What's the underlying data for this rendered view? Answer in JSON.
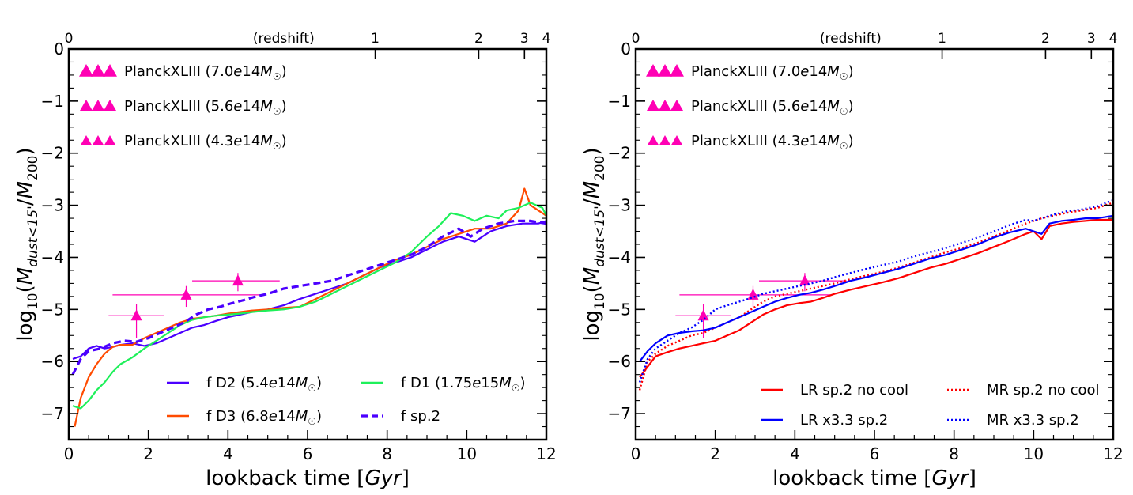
{
  "chart_data": [
    {
      "type": "line",
      "xlabel": "lookback time  [Gyr]",
      "ylabel": "log10(M dust <15' / M 200)",
      "top_axis_label": "(redshift)",
      "xlim": [
        0,
        12
      ],
      "ylim": [
        -7.5,
        0
      ],
      "x_ticks": [
        "0",
        "2",
        "4",
        "6",
        "8",
        "10",
        "12"
      ],
      "y_ticks": [
        "0",
        "−1",
        "−2",
        "−3",
        "−4",
        "−5",
        "−6",
        "−7"
      ],
      "top_ticks": [
        {
          "label": "0",
          "x": 0
        },
        {
          "label": "1",
          "x": 7.7
        },
        {
          "label": "2",
          "x": 10.3
        },
        {
          "label": "3",
          "x": 11.45
        },
        {
          "label": "4",
          "x": 12.0
        }
      ],
      "observations": [
        {
          "name": "PlanckXLIII (7.0e14M☉)",
          "color": "#ff00b4",
          "x": 4.25,
          "y": -4.45,
          "xerr": [
            3.1,
            5.3
          ],
          "yerr_up": -4.3,
          "yerr_low": -4.65
        },
        {
          "name": "PlanckXLIII (5.6e14M☉)",
          "color": "#ff00b4",
          "x": 2.95,
          "y": -4.72,
          "xerr": [
            1.1,
            4.9
          ],
          "yerr_up": -4.55,
          "yerr_low": -4.95
        },
        {
          "name": "PlanckXLIII (4.3e14M☉)",
          "color": "#ff00b4",
          "x": 1.7,
          "y": -5.12,
          "xerr": [
            1.0,
            2.4
          ],
          "yerr_up": -4.9,
          "yerr_low": -5.55
        }
      ],
      "series": [
        {
          "name": "f D2 (5.4e14M☉)",
          "color": "#4b00ff",
          "dash": "solid",
          "x": [
            0.1,
            0.3,
            0.5,
            0.7,
            0.9,
            1.1,
            1.3,
            1.6,
            1.9,
            2.2,
            2.5,
            2.8,
            3.1,
            3.4,
            3.7,
            4.0,
            4.3,
            4.6,
            5.0,
            5.4,
            5.8,
            6.2,
            6.6,
            7.0,
            7.4,
            7.8,
            8.2,
            8.6,
            9.0,
            9.4,
            9.8,
            10.2,
            10.6,
            11.0,
            11.4,
            11.8,
            12.0
          ],
          "y": [
            -5.95,
            -5.9,
            -5.75,
            -5.7,
            -5.75,
            -5.72,
            -5.68,
            -5.65,
            -5.7,
            -5.65,
            -5.55,
            -5.45,
            -5.35,
            -5.3,
            -5.22,
            -5.15,
            -5.1,
            -5.05,
            -5.0,
            -4.92,
            -4.8,
            -4.7,
            -4.6,
            -4.5,
            -4.35,
            -4.2,
            -4.1,
            -4.0,
            -3.85,
            -3.7,
            -3.6,
            -3.7,
            -3.5,
            -3.4,
            -3.35,
            -3.35,
            -3.3
          ]
        },
        {
          "name": "f D3 (6.8e14M☉)",
          "color": "#ff4b00",
          "dash": "solid",
          "x": [
            0.15,
            0.3,
            0.5,
            0.7,
            0.9,
            1.1,
            1.3,
            1.6,
            1.9,
            2.2,
            2.5,
            2.8,
            3.1,
            3.4,
            3.7,
            4.0,
            4.3,
            4.6,
            5.0,
            5.4,
            5.8,
            6.2,
            6.6,
            7.0,
            7.4,
            7.8,
            8.2,
            8.6,
            9.0,
            9.4,
            9.8,
            10.2,
            10.6,
            11.0,
            11.3,
            11.45,
            11.6,
            12.0
          ],
          "y": [
            -7.25,
            -6.7,
            -6.3,
            -6.05,
            -5.85,
            -5.72,
            -5.68,
            -5.68,
            -5.55,
            -5.45,
            -5.35,
            -5.25,
            -5.18,
            -5.15,
            -5.12,
            -5.08,
            -5.05,
            -5.02,
            -5.0,
            -4.97,
            -4.95,
            -4.8,
            -4.65,
            -4.5,
            -4.35,
            -4.2,
            -4.05,
            -3.95,
            -3.8,
            -3.65,
            -3.55,
            -3.45,
            -3.45,
            -3.35,
            -3.1,
            -2.68,
            -3.0,
            -3.2
          ]
        },
        {
          "name": "f D1 (1.75e15M☉)",
          "color": "#1ef05a",
          "dash": "solid",
          "x": [
            0.1,
            0.3,
            0.5,
            0.7,
            0.9,
            1.1,
            1.3,
            1.6,
            1.9,
            2.2,
            2.5,
            2.8,
            3.1,
            3.4,
            3.7,
            4.0,
            4.3,
            4.6,
            5.0,
            5.4,
            5.8,
            6.2,
            6.6,
            7.0,
            7.4,
            7.8,
            8.2,
            8.6,
            9.0,
            9.3,
            9.6,
            9.9,
            10.2,
            10.5,
            10.8,
            11.0,
            11.3,
            11.6,
            11.9,
            12.0
          ],
          "y": [
            -6.85,
            -6.9,
            -6.75,
            -6.55,
            -6.4,
            -6.2,
            -6.05,
            -5.92,
            -5.75,
            -5.6,
            -5.45,
            -5.3,
            -5.2,
            -5.15,
            -5.12,
            -5.1,
            -5.08,
            -5.05,
            -5.02,
            -5.0,
            -4.95,
            -4.85,
            -4.7,
            -4.55,
            -4.4,
            -4.25,
            -4.1,
            -3.9,
            -3.6,
            -3.4,
            -3.15,
            -3.2,
            -3.3,
            -3.2,
            -3.25,
            -3.1,
            -3.05,
            -2.95,
            -3.05,
            -3.2
          ]
        },
        {
          "name": "f sp.2",
          "color": "#4b00ff",
          "dash": "dashed",
          "x": [
            0.1,
            0.3,
            0.5,
            0.8,
            1.1,
            1.4,
            1.7,
            2.0,
            2.3,
            2.6,
            2.9,
            3.2,
            3.5,
            3.8,
            4.1,
            4.4,
            4.7,
            5.0,
            5.4,
            5.8,
            6.2,
            6.6,
            7.0,
            7.4,
            7.8,
            8.2,
            8.6,
            9.0,
            9.4,
            9.8,
            10.1,
            10.4,
            10.8,
            11.2,
            11.6,
            12.0
          ],
          "y": [
            -6.25,
            -5.95,
            -5.8,
            -5.75,
            -5.65,
            -5.6,
            -5.62,
            -5.55,
            -5.45,
            -5.35,
            -5.25,
            -5.1,
            -5.0,
            -4.95,
            -4.88,
            -4.82,
            -4.75,
            -4.7,
            -4.6,
            -4.55,
            -4.5,
            -4.45,
            -4.35,
            -4.25,
            -4.15,
            -4.05,
            -3.95,
            -3.8,
            -3.6,
            -3.45,
            -3.6,
            -3.45,
            -3.35,
            -3.3,
            -3.3,
            -3.35
          ]
        }
      ],
      "legend": [
        {
          "name": "f D2 (5.4e14M☉)",
          "color": "#4b00ff",
          "style": "solid"
        },
        {
          "name": "f D1 (1.75e15M☉)",
          "color": "#1ef05a",
          "style": "solid"
        },
        {
          "name": "f D3 (6.8e14M☉)",
          "color": "#ff4b00",
          "style": "solid"
        },
        {
          "name": "f sp.2",
          "color": "#4b00ff",
          "style": "dashed"
        }
      ]
    },
    {
      "type": "line",
      "xlabel": "lookback time  [Gyr]",
      "ylabel": "log10(M dust <15' / M 200)",
      "top_axis_label": "(redshift)",
      "xlim": [
        0,
        12
      ],
      "ylim": [
        -7.5,
        0
      ],
      "x_ticks": [
        "0",
        "2",
        "4",
        "6",
        "8",
        "10",
        "12"
      ],
      "y_ticks": [
        "0",
        "−1",
        "−2",
        "−3",
        "−4",
        "−5",
        "−6",
        "−7"
      ],
      "top_ticks": [
        {
          "label": "0",
          "x": 0
        },
        {
          "label": "1",
          "x": 7.7
        },
        {
          "label": "2",
          "x": 10.3
        },
        {
          "label": "3",
          "x": 11.45
        },
        {
          "label": "4",
          "x": 12.0
        }
      ],
      "observations": [
        {
          "name": "PlanckXLIII (7.0e14M☉)",
          "color": "#ff00b4",
          "x": 4.25,
          "y": -4.45,
          "xerr": [
            3.1,
            5.3
          ],
          "yerr_up": -4.3,
          "yerr_low": -4.65
        },
        {
          "name": "PlanckXLIII (5.6e14M☉)",
          "color": "#ff00b4",
          "x": 2.95,
          "y": -4.72,
          "xerr": [
            1.1,
            4.9
          ],
          "yerr_up": -4.55,
          "yerr_low": -4.95
        },
        {
          "name": "PlanckXLIII (4.3e14M☉)",
          "color": "#ff00b4",
          "x": 1.7,
          "y": -5.12,
          "xerr": [
            1.0,
            2.4
          ],
          "yerr_up": -4.9,
          "yerr_low": -5.55
        }
      ],
      "series": [
        {
          "name": "LR sp.2 no cool",
          "color": "#ff0000",
          "dash": "solid",
          "x": [
            0.1,
            0.3,
            0.5,
            0.8,
            1.1,
            1.4,
            1.7,
            2.0,
            2.3,
            2.6,
            2.9,
            3.2,
            3.5,
            3.8,
            4.1,
            4.4,
            4.7,
            5.0,
            5.4,
            5.8,
            6.2,
            6.6,
            7.0,
            7.4,
            7.8,
            8.2,
            8.6,
            9.0,
            9.4,
            9.8,
            10.0,
            10.2,
            10.4,
            10.7,
            11.0,
            11.3,
            11.6,
            12.0
          ],
          "y": [
            -6.3,
            -6.1,
            -5.9,
            -5.82,
            -5.75,
            -5.7,
            -5.65,
            -5.6,
            -5.5,
            -5.4,
            -5.25,
            -5.1,
            -5.0,
            -4.92,
            -4.88,
            -4.85,
            -4.78,
            -4.7,
            -4.62,
            -4.55,
            -4.48,
            -4.4,
            -4.3,
            -4.2,
            -4.12,
            -4.02,
            -3.92,
            -3.8,
            -3.68,
            -3.55,
            -3.5,
            -3.65,
            -3.4,
            -3.35,
            -3.32,
            -3.3,
            -3.28,
            -3.28
          ]
        },
        {
          "name": "MR sp.2 no cool",
          "color": "#ff0000",
          "dash": "dotted",
          "x": [
            0.1,
            0.3,
            0.5,
            0.8,
            1.1,
            1.4,
            1.7,
            2.0,
            2.3,
            2.6,
            2.9,
            3.2,
            3.5,
            3.8,
            4.1,
            4.4,
            4.7,
            5.0,
            5.4,
            5.8,
            6.2,
            6.6,
            7.0,
            7.4,
            7.8,
            8.2,
            8.6,
            9.0,
            9.4,
            9.8,
            10.0,
            10.2,
            10.5,
            10.8,
            11.2,
            11.6,
            12.0
          ],
          "y": [
            -6.55,
            -6.0,
            -5.85,
            -5.7,
            -5.6,
            -5.5,
            -5.45,
            -5.35,
            -5.25,
            -5.15,
            -5.0,
            -4.85,
            -4.75,
            -4.7,
            -4.65,
            -4.6,
            -4.55,
            -4.5,
            -4.42,
            -4.35,
            -4.28,
            -4.2,
            -4.1,
            -4.0,
            -3.9,
            -3.82,
            -3.72,
            -3.6,
            -3.48,
            -3.35,
            -3.3,
            -3.25,
            -3.2,
            -3.15,
            -3.1,
            -3.05,
            -2.95
          ]
        },
        {
          "name": "LR x3.3 sp.2",
          "color": "#0000ff",
          "dash": "solid",
          "x": [
            0.1,
            0.3,
            0.5,
            0.8,
            1.1,
            1.4,
            1.7,
            2.0,
            2.3,
            2.6,
            2.9,
            3.2,
            3.5,
            3.8,
            4.1,
            4.4,
            4.7,
            5.0,
            5.4,
            5.8,
            6.2,
            6.6,
            7.0,
            7.4,
            7.8,
            8.2,
            8.6,
            9.0,
            9.4,
            9.8,
            10.0,
            10.2,
            10.4,
            10.7,
            11.0,
            11.3,
            11.6,
            12.0
          ],
          "y": [
            -6.0,
            -5.8,
            -5.65,
            -5.5,
            -5.45,
            -5.42,
            -5.4,
            -5.35,
            -5.25,
            -5.15,
            -5.05,
            -4.95,
            -4.85,
            -4.78,
            -4.72,
            -4.68,
            -4.62,
            -4.55,
            -4.45,
            -4.38,
            -4.3,
            -4.22,
            -4.12,
            -4.02,
            -3.95,
            -3.85,
            -3.75,
            -3.62,
            -3.52,
            -3.45,
            -3.5,
            -3.55,
            -3.35,
            -3.3,
            -3.28,
            -3.25,
            -3.25,
            -3.2
          ]
        },
        {
          "name": "MR x3.3 sp.2",
          "color": "#0000ff",
          "dash": "dotted",
          "x": [
            0.1,
            0.3,
            0.5,
            0.8,
            1.1,
            1.4,
            1.7,
            2.0,
            2.3,
            2.6,
            2.9,
            3.2,
            3.5,
            3.8,
            4.1,
            4.4,
            4.7,
            5.0,
            5.4,
            5.8,
            6.2,
            6.6,
            7.0,
            7.4,
            7.8,
            8.2,
            8.6,
            9.0,
            9.4,
            9.8,
            10.0,
            10.2,
            10.5,
            10.8,
            11.2,
            11.6,
            12.0
          ],
          "y": [
            -6.4,
            -5.95,
            -5.75,
            -5.6,
            -5.45,
            -5.35,
            -5.2,
            -5.0,
            -4.92,
            -4.85,
            -4.78,
            -4.7,
            -4.65,
            -4.6,
            -4.55,
            -4.5,
            -4.45,
            -4.38,
            -4.3,
            -4.22,
            -4.15,
            -4.08,
            -3.98,
            -3.9,
            -3.82,
            -3.72,
            -3.62,
            -3.5,
            -3.38,
            -3.28,
            -3.3,
            -3.25,
            -3.18,
            -3.12,
            -3.08,
            -3.02,
            -2.9
          ]
        }
      ],
      "legend": [
        {
          "name": "LR sp.2 no cool",
          "color": "#ff0000",
          "style": "solid"
        },
        {
          "name": "MR sp.2 no cool",
          "color": "#ff0000",
          "style": "dotted"
        },
        {
          "name": "LR x3.3 sp.2",
          "color": "#0000ff",
          "style": "solid"
        },
        {
          "name": "MR x3.3 sp.2",
          "color": "#0000ff",
          "style": "dotted"
        }
      ]
    }
  ]
}
